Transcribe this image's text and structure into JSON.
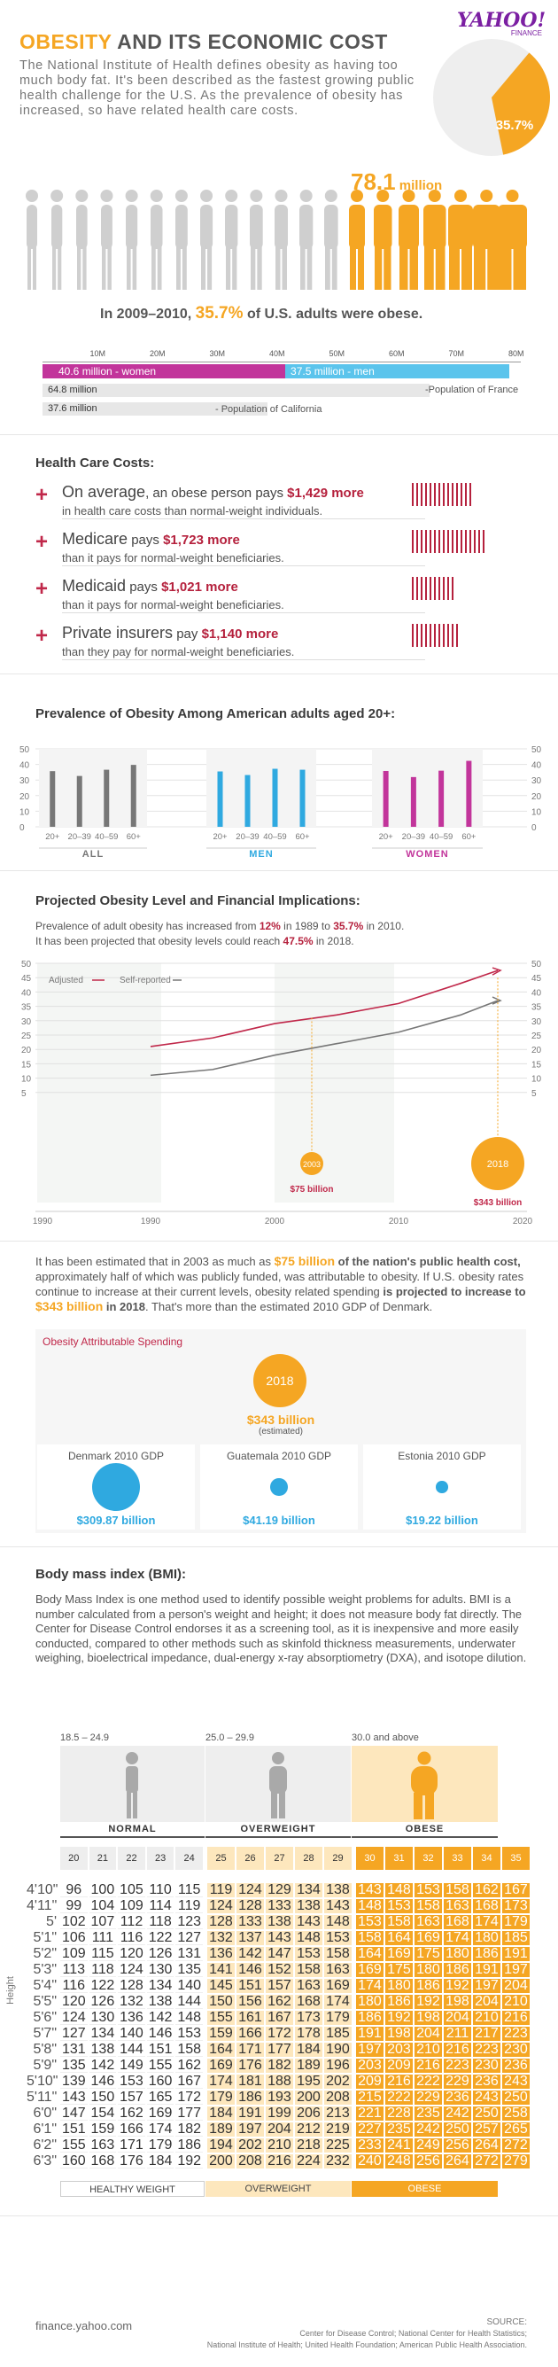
{
  "header": {
    "title_main": "OBESITY",
    "title_rest": " AND ITS ECONOMIC COST",
    "logo_main": "YAHOO!",
    "logo_sub": "FINANCE",
    "intro": "The National Institute of Health defines obesity as having too much body fat. It's been described as the fastest growing public health challenge for the U.S. As the prevalence of obesity has increased, so have related health care costs.",
    "pie_label": "35.7%",
    "pie_value": 35.7
  },
  "people": {
    "value": "78.1",
    "unit": " million",
    "caption_pre": "In 2009–2010, ",
    "caption_pct": "35.7%",
    "caption_post": " of U.S. adults were obese."
  },
  "population": {
    "ticks": [
      "10M",
      "20M",
      "30M",
      "40M",
      "50M",
      "60M",
      "70M",
      "80M"
    ],
    "women": "40.6 million - women",
    "men": "37.5 million - men",
    "women_value": 40.6,
    "men_value": 37.5,
    "france_value": "64.8 million",
    "france_label": "-Population of France",
    "france_num": 64.8,
    "california_value": "37.6 million",
    "california_label": "- Population of California",
    "california_num": 37.6
  },
  "health": {
    "title": "Health Care Costs:",
    "items": [
      {
        "l1_pre": "On average",
        "l1_mid": ", an obese person pays ",
        "amount": "$1,429 more",
        "l2": "in health care costs than normal-weight individuals.",
        "ticks": 14
      },
      {
        "l1_pre": "Medicare",
        "l1_mid": " pays ",
        "amount": "$1,723 more",
        "l2": "than it pays for normal-weight beneficiaries.",
        "ticks": 17
      },
      {
        "l1_pre": "Medicaid",
        "l1_mid": " pays ",
        "amount": "$1,021 more",
        "l2": "than it pays for normal-weight beneficiaries.",
        "ticks": 10
      },
      {
        "l1_pre": "Private insurers",
        "l1_mid": " pay ",
        "amount": "$1,140 more",
        "l2": "than they pay for normal-weight beneficiaries.",
        "ticks": 11
      }
    ]
  },
  "prevalence": {
    "title": "Prevalence of Obesity Among American adults aged 20+:",
    "yticks": [
      "50",
      "40",
      "30",
      "20",
      "10",
      "0"
    ],
    "groups": [
      {
        "name": "ALL",
        "color": "#777777",
        "ages": [
          "20+",
          "20–39",
          "40–59",
          "60+"
        ],
        "values": [
          35.7,
          32.6,
          36.6,
          39.7
        ]
      },
      {
        "name": "MEN",
        "color": "#2fa9e0",
        "ages": [
          "20+",
          "20–39",
          "40–59",
          "60+"
        ],
        "values": [
          35.5,
          33.2,
          37.2,
          36.6
        ]
      },
      {
        "name": "WOMEN",
        "color": "#c2359b",
        "ages": [
          "20+",
          "20–39",
          "40–59",
          "60+"
        ],
        "values": [
          35.8,
          31.9,
          36.0,
          42.3
        ]
      }
    ]
  },
  "projection": {
    "title": "Projected Obesity Level and Financial Implications:",
    "l1_pre": "Prevalence of adult obesity has increased from ",
    "l1_a": "12%",
    "l1_mid": " in 1989 to ",
    "l1_b": "35.7%",
    "l1_post": " in 2010.",
    "l2_pre": "It has been projected that obesity levels could reach ",
    "l2_a": "47.5%",
    "l2_post": " in 2018.",
    "legend_adjusted": "Adjusted",
    "legend_self": "Self-reported",
    "yticks": [
      "50",
      "45",
      "40",
      "35",
      "30",
      "25",
      "20",
      "15",
      "10",
      "5"
    ],
    "xticks": [
      "1990",
      "1990",
      "2000",
      "2010",
      "2020"
    ],
    "b2003_year": "2003",
    "b2003_amt": "$75 billion",
    "b2018_year": "2018",
    "b2018_amt": "$343 billion"
  },
  "chart_data": {
    "type": "line",
    "title": "Projected Obesity Level",
    "xlabel": "",
    "ylabel": "",
    "ylim": [
      0,
      50
    ],
    "x": [
      1990,
      1995,
      2000,
      2005,
      2010,
      2015,
      2018
    ],
    "series": [
      {
        "name": "Adjusted",
        "values": [
          21,
          24,
          29,
          32,
          36,
          43,
          47.5
        ]
      },
      {
        "name": "Self-reported",
        "values": [
          11,
          13,
          18,
          22,
          26,
          32,
          37
        ]
      }
    ]
  },
  "spend_text": {
    "p1_pre": "It has been estimated that in 2003 as much as ",
    "p1_amt": "$75 billion",
    "p1_bold": " of the nation's public health cost,",
    "p1_post": " approximately half of which was publicly funded, was attributable to obesity. If U.S. obesity rates continue to increase at their current levels, obesity related spending ",
    "p1_bold2": "is projected to increase to ",
    "p1_amt2": "$343 billion",
    "p1_bold3": " in 2018",
    "p1_end": ". That's more than the estimated 2010 GDP of Denmark."
  },
  "spend_box": {
    "label": "Obesity Attributable Spending",
    "year": "2018",
    "amount": "$343 billion",
    "est": "(estimated)",
    "gdp": [
      {
        "name": "Denmark 2010 GDP",
        "value": "$309.87 billion",
        "num": 309.87
      },
      {
        "name": "Guatemala 2010 GDP",
        "value": "$41.19 billion",
        "num": 41.19
      },
      {
        "name": "Estonia 2010 GDP",
        "value": "$19.22 billion",
        "num": 19.22
      }
    ]
  },
  "bmi": {
    "title": "Body mass index (BMI):",
    "text": "Body Mass Index is one method used to identify possible weight problems for adults. BMI is a number calculated from a person's weight and height; it does not measure body fat directly. The Center for Disease Control endorses it as a screening tool, as it is inexpensive and more easily conducted, compared to other methods such as skinfold thickness measurements, underwater weighing, bioelectrical impedance, dual-energy x-ray absorptiometry (DXA), and isotope dilution.",
    "ranges": [
      "18.5 – 24.9",
      "25.0 – 29.9",
      "30.0 and above"
    ],
    "cats": [
      "NORMAL",
      "OVERWEIGHT",
      "OBESE"
    ],
    "footer": [
      "HEALTHY WEIGHT",
      "OVERWEIGHT",
      "OBESE"
    ],
    "height_label": "Height",
    "bmi_values": [
      "20",
      "21",
      "22",
      "23",
      "24",
      "25",
      "26",
      "27",
      "28",
      "29",
      "30",
      "31",
      "32",
      "33",
      "34",
      "35"
    ],
    "heights": [
      "4'10\"",
      "4'11\"",
      "5'",
      "5'1\"",
      "5'2\"",
      "5'3\"",
      "5'4\"",
      "5'5\"",
      "5'6\"",
      "5'7\"",
      "5'8\"",
      "5'9\"",
      "5'10\"",
      "5'11\"",
      "6'0\"",
      "6'1\"",
      "6'2\"",
      "6'3\""
    ],
    "weights": [
      [
        "96",
        "100",
        "105",
        "110",
        "115",
        "119",
        "124",
        "129",
        "134",
        "138",
        "143",
        "148",
        "153",
        "158",
        "162",
        "167"
      ],
      [
        "99",
        "104",
        "109",
        "114",
        "119",
        "124",
        "128",
        "133",
        "138",
        "143",
        "148",
        "153",
        "158",
        "163",
        "168",
        "173"
      ],
      [
        "102",
        "107",
        "112",
        "118",
        "123",
        "128",
        "133",
        "138",
        "143",
        "148",
        "153",
        "158",
        "163",
        "168",
        "174",
        "179"
      ],
      [
        "106",
        "111",
        "116",
        "122",
        "127",
        "132",
        "137",
        "143",
        "148",
        "153",
        "158",
        "164",
        "169",
        "174",
        "180",
        "185"
      ],
      [
        "109",
        "115",
        "120",
        "126",
        "131",
        "136",
        "142",
        "147",
        "153",
        "158",
        "164",
        "169",
        "175",
        "180",
        "186",
        "191"
      ],
      [
        "113",
        "118",
        "124",
        "130",
        "135",
        "141",
        "146",
        "152",
        "158",
        "163",
        "169",
        "175",
        "180",
        "186",
        "191",
        "197"
      ],
      [
        "116",
        "122",
        "128",
        "134",
        "140",
        "145",
        "151",
        "157",
        "163",
        "169",
        "174",
        "180",
        "186",
        "192",
        "197",
        "204"
      ],
      [
        "120",
        "126",
        "132",
        "138",
        "144",
        "150",
        "156",
        "162",
        "168",
        "174",
        "180",
        "186",
        "192",
        "198",
        "204",
        "210"
      ],
      [
        "124",
        "130",
        "136",
        "142",
        "148",
        "155",
        "161",
        "167",
        "173",
        "179",
        "186",
        "192",
        "198",
        "204",
        "210",
        "216"
      ],
      [
        "127",
        "134",
        "140",
        "146",
        "153",
        "159",
        "166",
        "172",
        "178",
        "185",
        "191",
        "198",
        "204",
        "211",
        "217",
        "223"
      ],
      [
        "131",
        "138",
        "144",
        "151",
        "158",
        "164",
        "171",
        "177",
        "184",
        "190",
        "197",
        "203",
        "210",
        "216",
        "223",
        "230"
      ],
      [
        "135",
        "142",
        "149",
        "155",
        "162",
        "169",
        "176",
        "182",
        "189",
        "196",
        "203",
        "209",
        "216",
        "223",
        "230",
        "236"
      ],
      [
        "139",
        "146",
        "153",
        "160",
        "167",
        "174",
        "181",
        "188",
        "195",
        "202",
        "209",
        "216",
        "222",
        "229",
        "236",
        "243"
      ],
      [
        "143",
        "150",
        "157",
        "165",
        "172",
        "179",
        "186",
        "193",
        "200",
        "208",
        "215",
        "222",
        "229",
        "236",
        "243",
        "250"
      ],
      [
        "147",
        "154",
        "162",
        "169",
        "177",
        "184",
        "191",
        "199",
        "206",
        "213",
        "221",
        "228",
        "235",
        "242",
        "250",
        "258"
      ],
      [
        "151",
        "159",
        "166",
        "174",
        "182",
        "189",
        "197",
        "204",
        "212",
        "219",
        "227",
        "235",
        "242",
        "250",
        "257",
        "265"
      ],
      [
        "155",
        "163",
        "171",
        "179",
        "186",
        "194",
        "202",
        "210",
        "218",
        "225",
        "233",
        "241",
        "249",
        "256",
        "264",
        "272"
      ],
      [
        "160",
        "168",
        "176",
        "184",
        "192",
        "200",
        "208",
        "216",
        "224",
        "232",
        "240",
        "248",
        "256",
        "264",
        "272",
        "279"
      ]
    ]
  },
  "footer": {
    "site": "finance.yahoo.com",
    "source_label": "SOURCE:",
    "source1": "Center for Disease Control; National Center for Health Statistics;",
    "source2": "National Institute of Health; United Health Foundation; American Public Health Association."
  }
}
